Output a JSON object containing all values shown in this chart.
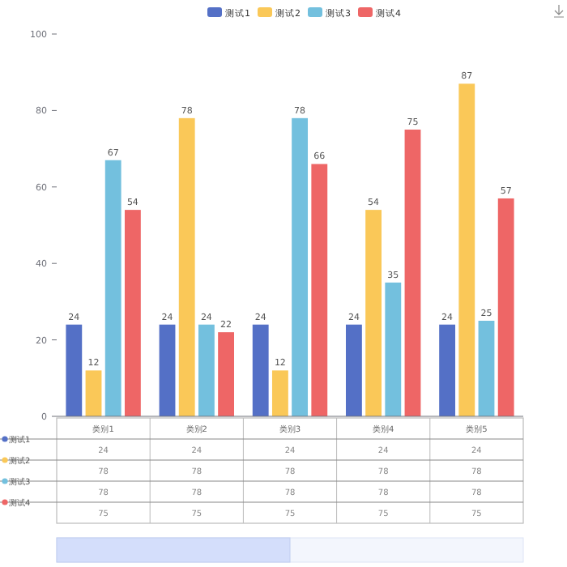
{
  "chart_data": {
    "type": "bar",
    "categories": [
      "类别1",
      "类别2",
      "类别3",
      "类别4",
      "类别5"
    ],
    "series": [
      {
        "name": "测试1",
        "color": "#5470c6",
        "values": [
          24,
          24,
          24,
          24,
          24
        ]
      },
      {
        "name": "测试2",
        "color": "#fac858",
        "values": [
          12,
          78,
          12,
          54,
          87
        ]
      },
      {
        "name": "测试3",
        "color": "#73c0de",
        "values": [
          67,
          24,
          78,
          35,
          25
        ]
      },
      {
        "name": "测试4",
        "color": "#ee6666",
        "values": [
          54,
          22,
          66,
          75,
          57
        ]
      }
    ],
    "ylim": [
      0,
      100
    ],
    "yticks": [
      0,
      20,
      40,
      60,
      80,
      100
    ],
    "legend": "top",
    "data_labels": true,
    "annotations": [
      "测试1",
      "24",
      "24",
      "24",
      "24",
      "24",
      "测试2",
      "78",
      "78",
      "78",
      "78",
      "78",
      "测试3",
      "78",
      "78",
      "78",
      "78",
      "78",
      "测试4",
      "75",
      "75",
      "75",
      "75",
      "75"
    ]
  }
}
